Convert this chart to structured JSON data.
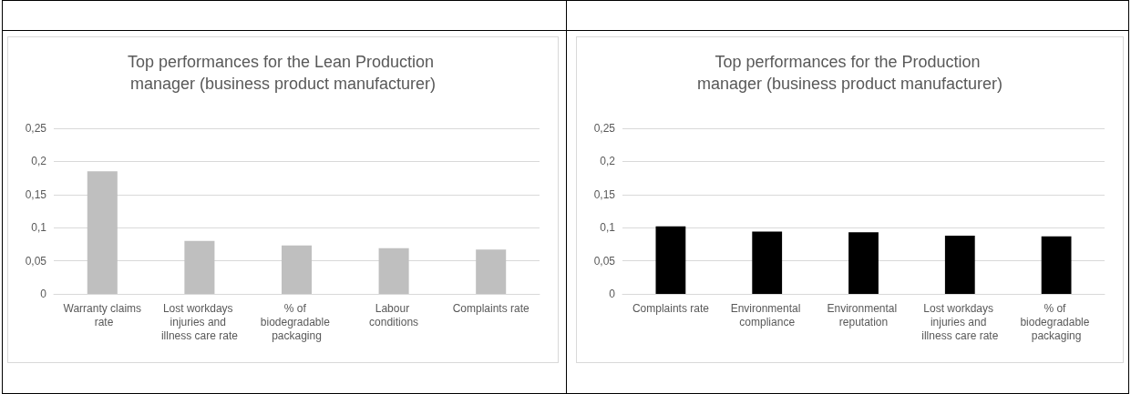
{
  "chart_data": [
    {
      "type": "bar",
      "title": "Top performances for the Lean Production manager (business product manufacturer)",
      "categories": [
        "Warranty claims rate",
        "Lost workdays injuries and illness care rate",
        "% of biodegradable packaging",
        "Labour conditions",
        "Complaints rate"
      ],
      "values": [
        0.185,
        0.08,
        0.073,
        0.069,
        0.067
      ],
      "color": "#bfbfbf",
      "ylim": [
        0,
        0.25
      ],
      "yticks": [
        0,
        {
          "value": 0.05,
          "label": "0,05"
        },
        {
          "value": 0.1,
          "label": "0,1"
        },
        {
          "value": 0.15,
          "label": "0,15"
        },
        {
          "value": 0.2,
          "label": "0,2"
        },
        {
          "value": 0.25,
          "label": "0,25"
        }
      ],
      "grid": "y"
    },
    {
      "type": "bar",
      "title": "Top performances for the Production manager (business product manufacturer)",
      "categories": [
        "Complaints rate",
        "Environmental compliance",
        "Environmental reputation",
        "Lost workdays injuries and illness care rate",
        "% of biodegradable packaging"
      ],
      "values": [
        0.102,
        0.094,
        0.093,
        0.088,
        0.087
      ],
      "color": "#000000",
      "ylim": [
        0,
        0.25
      ],
      "yticks": [
        0,
        {
          "value": 0.05,
          "label": "0,05"
        },
        {
          "value": 0.1,
          "label": "0,1"
        },
        {
          "value": 0.15,
          "label": "0,15"
        },
        {
          "value": 0.2,
          "label": "0,2"
        },
        {
          "value": 0.25,
          "label": "0,25"
        }
      ],
      "grid": "y"
    }
  ]
}
